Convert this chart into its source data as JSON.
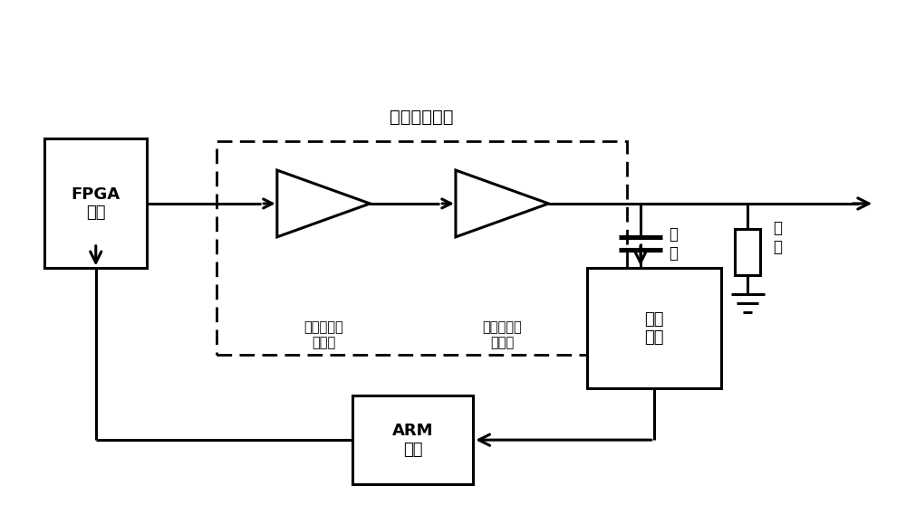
{
  "bg_color": "#ffffff",
  "line_color": "#000000",
  "title": "功率放大电路",
  "fpga_label": "FPGA\n电路",
  "arm_label": "ARM\n电路",
  "detect_label": "检波\n电路",
  "amp1_label": "第一级增益\n放大器",
  "amp2_label": "第二级增益\n放大器",
  "cap_label": "电\n容",
  "load_label": "负\n载",
  "fig_width": 10.0,
  "fig_height": 5.79
}
